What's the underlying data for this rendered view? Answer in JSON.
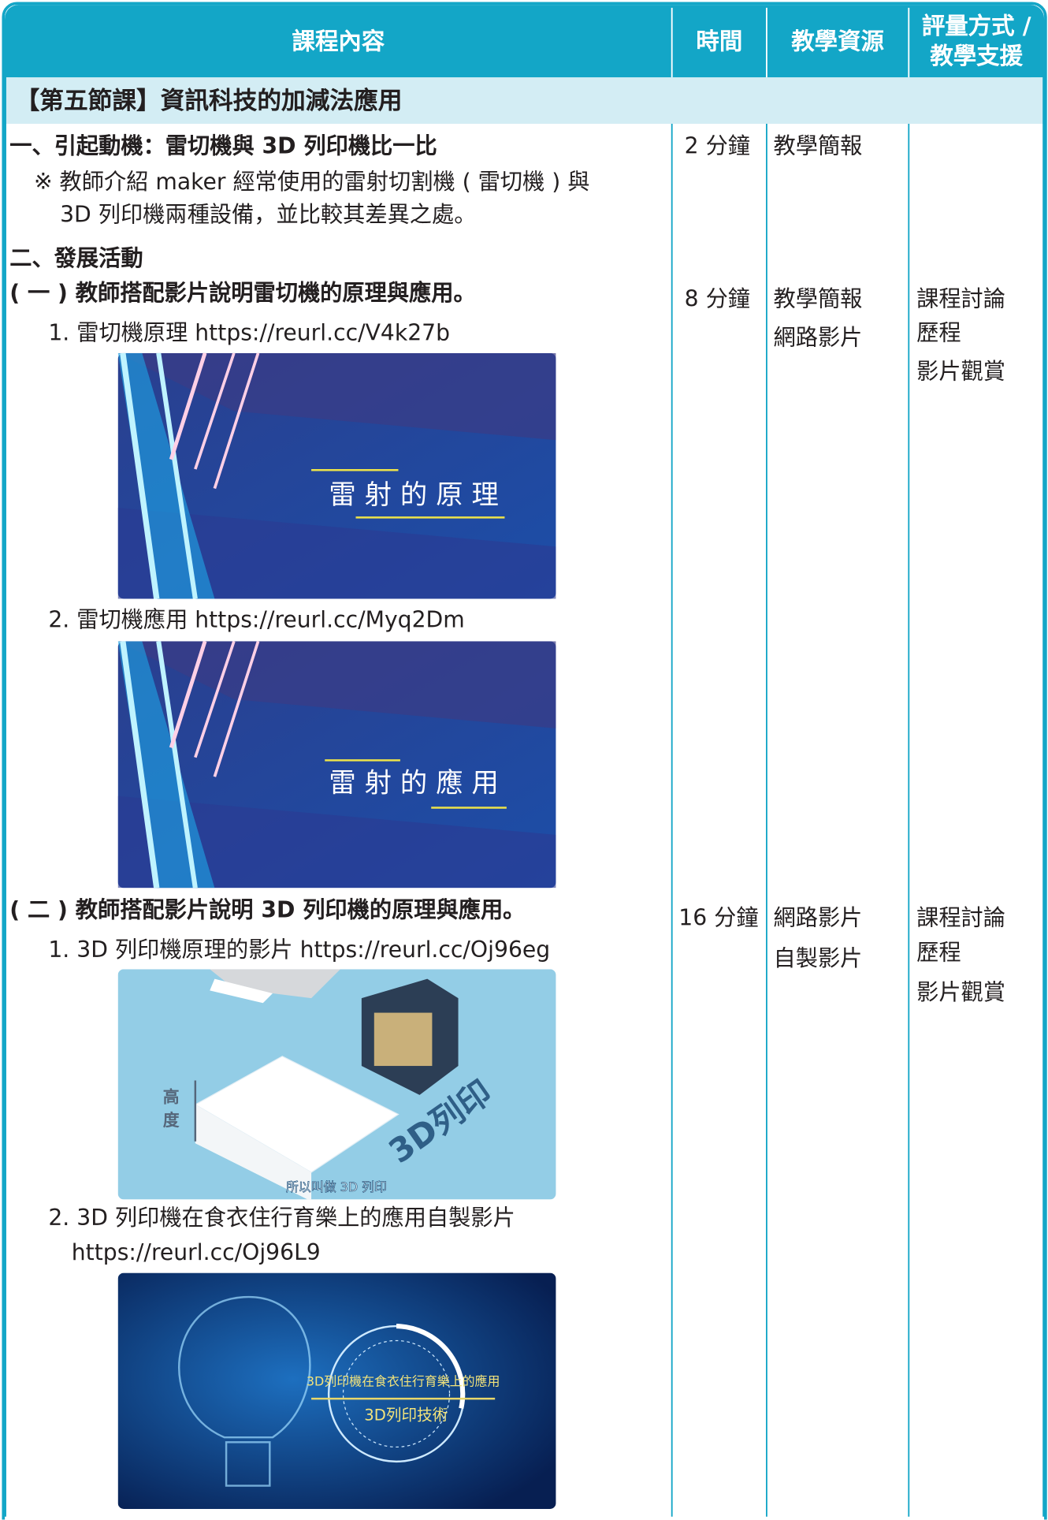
{
  "table": {
    "header": {
      "content": "課程內容",
      "time": "時間",
      "resources": "教學資源",
      "assessment": [
        "評量方式 /",
        "教學支援"
      ]
    },
    "section_title": "【第五節課】資訊科技的加減法應用",
    "rows": [
      {
        "content": [
          "一、引起動機：雷切機與 3D 列印機比一比",
          "※ 教師介紹 maker 經常使用的雷射切割機 ( 雷切機 ) 與",
          "3D 列印機兩種設備，並比較其差異之處。"
        ],
        "time": "2 分鐘",
        "resources": [
          "教學簡報"
        ]
      },
      {
        "content": [
          "二、發展活動",
          "( 一 ) 教師搭配影片說明雷切機的原理與應用。",
          "1. 雷切機原理  https://reurl.cc/V4k27b",
          "2. 雷切機應用  https://reurl.cc/Myq2Dm"
        ],
        "time": "8 分鐘",
        "resources": [
          "教學簡報",
          "網路影片"
        ],
        "assessment": [
          "課程討論",
          "歷程",
          "影片觀賞"
        ],
        "images": [
          {
            "texts": [
              "雷 射 的 原 理"
            ]
          },
          {
            "texts": [
              "雷 射 的 應 用"
            ]
          }
        ]
      },
      {
        "content": [
          "( 二 ) 教師搭配影片說明 3D 列印機的原理與應用。",
          "1. 3D 列印機原理的影片  https://reurl.cc/Oj96eg",
          "2. 3D 列印機在食衣住行育樂上的應用自製影片",
          "https://reurl.cc/Oj96L9"
        ],
        "time": "16 分鐘",
        "resources": [
          "網路影片",
          "自製影片"
        ],
        "assessment": [
          "課程討論",
          "歷程",
          "影片觀賞"
        ],
        "images": [
          {
            "texts": [
              "高",
              "度",
              "3D列印",
              "所以叫做 3D 列印"
            ]
          },
          {
            "texts": [
              "3D列印機在食衣住行育樂上的應用",
              "3D列印技術"
            ]
          }
        ]
      }
    ]
  }
}
